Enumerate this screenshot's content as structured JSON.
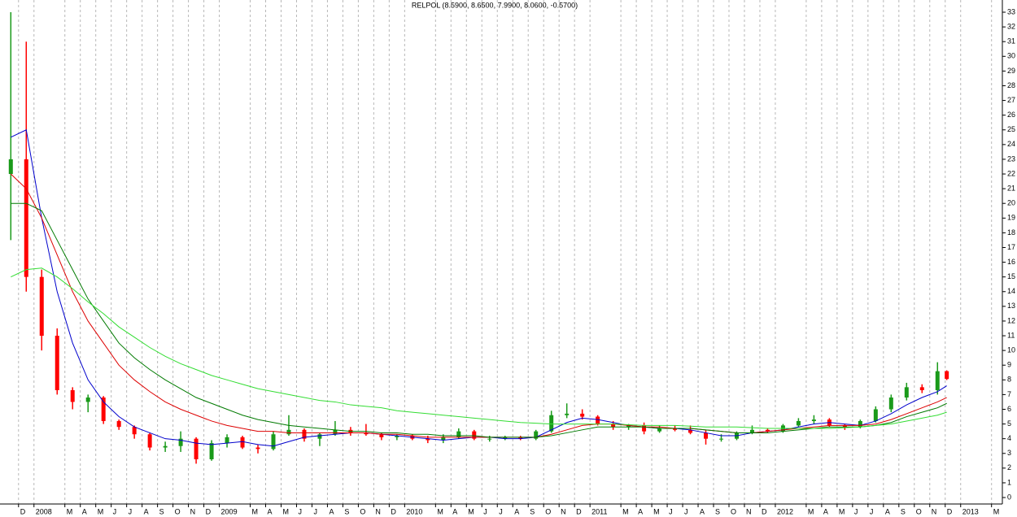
{
  "chart_data": {
    "type": "candlestick",
    "title": "RELPOL (8.5900, 8.6500, 7.9900, 8.0600, -0.5700)",
    "x": [
      0.5,
      1.5,
      2.5,
      3.5,
      4.5,
      5.5,
      6.5,
      7.5,
      8.5,
      9.5,
      10.5,
      11.5,
      12.5,
      13.5,
      14.5,
      15.5,
      16.5,
      17.5,
      18.5,
      19.5,
      20.5,
      21.5,
      22.5,
      23.5,
      24.5,
      25.5,
      26.5,
      27.5,
      28.5,
      29.5,
      30.5,
      31.5,
      32.5,
      33.5,
      34.5,
      35.5,
      36.5,
      37.5,
      38.5,
      39.5,
      40.5,
      41.5,
      42.5,
      43.5,
      44.5,
      45.5,
      46.5,
      47.5,
      48.5,
      49.5,
      50.5,
      51.5,
      52.5,
      53.5,
      54.5,
      55.5,
      56.5,
      57.5,
      58.5,
      59.5,
      60.5,
      61.1
    ],
    "candles": {
      "up_color": "#1a9a1a",
      "down_color": "#ff0000",
      "open": [
        22,
        23,
        15,
        11,
        7.3,
        6.5,
        6.8,
        5.2,
        4.8,
        4.3,
        3.4,
        3.5,
        4.0,
        2.6,
        3.7,
        4.1,
        3.4,
        3.3,
        4.3,
        4.6,
        4.0,
        4.3,
        4.6,
        4.4,
        4.3,
        4.1,
        4.2,
        4.0,
        3.9,
        4.1,
        4.5,
        4.0,
        4.0,
        4.1,
        4.0,
        4.5,
        5.6,
        5.7,
        5.5,
        5.0,
        4.8,
        4.9,
        4.5,
        4.7,
        4.6,
        4.4,
        4.0,
        4.0,
        4.4,
        4.6,
        4.5,
        4.9,
        5.2,
        5.3,
        4.9,
        4.8,
        5.2,
        6.0,
        6.8,
        7.5,
        7.3,
        8.59
      ],
      "high": [
        33,
        31,
        15.5,
        11.5,
        7.5,
        7,
        6.9,
        5.3,
        4.9,
        4.4,
        3.8,
        4.5,
        4.1,
        3.9,
        4.3,
        4.2,
        3.6,
        4.5,
        5.6,
        4.7,
        4.4,
        5.2,
        4.8,
        5.0,
        4.4,
        4.3,
        4.3,
        4.2,
        4.3,
        4.7,
        4.6,
        4.2,
        4.2,
        4.2,
        4.6,
        5.9,
        6.4,
        6.0,
        5.6,
        5.2,
        5.0,
        5.1,
        4.9,
        4.9,
        4.9,
        4.6,
        4.3,
        4.5,
        4.9,
        4.7,
        5.0,
        5.4,
        5.6,
        5.4,
        5.0,
        5.3,
        6.2,
        7.0,
        7.8,
        7.7,
        9.2,
        8.65
      ],
      "low": [
        17.5,
        14,
        10,
        7,
        6,
        5.8,
        5,
        4.6,
        4,
        3.2,
        3.1,
        3.1,
        2.3,
        2.5,
        3.4,
        3.3,
        3.0,
        3.2,
        4.2,
        3.8,
        3.5,
        4.2,
        4.2,
        4.2,
        3.9,
        3.9,
        3.9,
        3.7,
        3.7,
        4.0,
        3.9,
        3.8,
        3.9,
        3.9,
        3.9,
        4.4,
        5.4,
        5.3,
        4.9,
        4.6,
        4.6,
        4.3,
        4.4,
        4.5,
        4.3,
        3.6,
        3.8,
        3.9,
        4.3,
        4.4,
        4.4,
        4.8,
        5.0,
        4.8,
        4.6,
        4.7,
        5.1,
        5.8,
        6.6,
        7.1,
        7.0,
        7.99
      ],
      "close": [
        23,
        15,
        11,
        7.3,
        6.5,
        6.8,
        5.2,
        4.8,
        4.3,
        3.4,
        3.5,
        4.0,
        2.6,
        3.7,
        4.1,
        3.4,
        3.3,
        4.3,
        4.6,
        4.0,
        4.3,
        4.6,
        4.4,
        4.3,
        4.1,
        4.2,
        4.0,
        3.9,
        4.1,
        4.5,
        4.0,
        4.0,
        4.1,
        4.0,
        4.5,
        5.6,
        5.7,
        5.5,
        5.0,
        4.8,
        4.9,
        4.5,
        4.7,
        4.6,
        4.4,
        4.0,
        4.0,
        4.4,
        4.6,
        4.5,
        4.9,
        5.2,
        5.3,
        4.9,
        4.8,
        5.2,
        6.0,
        6.8,
        7.5,
        7.3,
        8.59,
        8.06
      ]
    },
    "lines": [
      {
        "color": "#0000cc",
        "values": [
          24.5,
          25,
          19,
          14,
          10.5,
          8,
          6.5,
          5.5,
          4.8,
          4.4,
          4.0,
          3.9,
          3.7,
          3.6,
          3.7,
          3.8,
          3.6,
          3.5,
          3.8,
          4.1,
          4.2,
          4.3,
          4.4,
          4.4,
          4.3,
          4.2,
          4.1,
          4.0,
          3.9,
          4.0,
          4.1,
          4.1,
          4.0,
          4.0,
          4.1,
          4.6,
          5.1,
          5.4,
          5.3,
          5.1,
          4.9,
          4.8,
          4.7,
          4.7,
          4.6,
          4.4,
          4.2,
          4.2,
          4.4,
          4.5,
          4.6,
          4.8,
          5.0,
          5.1,
          5.0,
          4.9,
          5.2,
          5.7,
          6.3,
          6.8,
          7.2,
          7.6
        ]
      },
      {
        "color": "#dd0000",
        "values": [
          22,
          21,
          19,
          16.5,
          14,
          12,
          10.5,
          9,
          8,
          7.2,
          6.5,
          6,
          5.6,
          5.2,
          4.9,
          4.7,
          4.5,
          4.5,
          4.4,
          4.4,
          4.4,
          4.4,
          4.4,
          4.4,
          4.3,
          4.3,
          4.2,
          4.1,
          4.1,
          4.1,
          4.1,
          4.1,
          4.1,
          4.1,
          4.1,
          4.3,
          4.6,
          4.9,
          5.0,
          5.0,
          4.9,
          4.8,
          4.8,
          4.7,
          4.7,
          4.6,
          4.5,
          4.4,
          4.4,
          4.5,
          4.6,
          4.7,
          4.8,
          4.9,
          4.9,
          4.9,
          5.0,
          5.3,
          5.7,
          6.1,
          6.5,
          6.8
        ]
      },
      {
        "color": "#007a00",
        "values": [
          20,
          20,
          19.5,
          17.5,
          15.5,
          13.5,
          12,
          10.5,
          9.5,
          8.7,
          8,
          7.4,
          6.8,
          6.4,
          6,
          5.6,
          5.3,
          5.1,
          4.9,
          4.8,
          4.7,
          4.6,
          4.5,
          4.5,
          4.4,
          4.4,
          4.3,
          4.3,
          4.2,
          4.2,
          4.2,
          4.1,
          4.1,
          4.1,
          4.1,
          4.2,
          4.4,
          4.6,
          4.8,
          4.8,
          4.8,
          4.8,
          4.7,
          4.7,
          4.7,
          4.6,
          4.5,
          4.4,
          4.4,
          4.4,
          4.5,
          4.6,
          4.7,
          4.8,
          4.8,
          4.8,
          4.9,
          5.1,
          5.5,
          5.8,
          6.1,
          6.4
        ]
      },
      {
        "color": "#33dd33",
        "values": [
          15,
          15.5,
          15.6,
          15,
          14.2,
          13.3,
          12.5,
          11.6,
          10.9,
          10.2,
          9.6,
          9.1,
          8.7,
          8.3,
          8.0,
          7.7,
          7.4,
          7.2,
          7.0,
          6.8,
          6.6,
          6.5,
          6.3,
          6.2,
          6.1,
          5.9,
          5.8,
          5.7,
          5.6,
          5.5,
          5.4,
          5.3,
          5.2,
          5.1,
          5.05,
          5.0,
          5.0,
          5.0,
          5.0,
          5.0,
          4.95,
          4.9,
          4.9,
          4.9,
          4.85,
          4.8,
          4.8,
          4.8,
          4.75,
          4.7,
          4.7,
          4.7,
          4.7,
          4.7,
          4.75,
          4.8,
          4.9,
          5.0,
          5.2,
          5.4,
          5.6,
          5.8
        ]
      }
    ],
    "xlim": [
      -0.2,
      64.7
    ],
    "ylim": [
      -0.44,
      33.83
    ],
    "xticks": [
      {
        "value": 1,
        "label": "D"
      },
      {
        "value": 2,
        "label": "2008"
      },
      {
        "value": 4,
        "label": "M"
      },
      {
        "value": 5,
        "label": "A"
      },
      {
        "value": 6,
        "label": "M"
      },
      {
        "value": 7,
        "label": "J"
      },
      {
        "value": 8,
        "label": "J"
      },
      {
        "value": 9,
        "label": "A"
      },
      {
        "value": 10,
        "label": "S"
      },
      {
        "value": 11,
        "label": "O"
      },
      {
        "value": 12,
        "label": "N"
      },
      {
        "value": 13,
        "label": "D"
      },
      {
        "value": 14,
        "label": "2009"
      },
      {
        "value": 16,
        "label": "M"
      },
      {
        "value": 17,
        "label": "A"
      },
      {
        "value": 18,
        "label": "M"
      },
      {
        "value": 19,
        "label": "J"
      },
      {
        "value": 20,
        "label": "J"
      },
      {
        "value": 21,
        "label": "A"
      },
      {
        "value": 22,
        "label": "S"
      },
      {
        "value": 23,
        "label": "O"
      },
      {
        "value": 24,
        "label": "N"
      },
      {
        "value": 25,
        "label": "D"
      },
      {
        "value": 26,
        "label": "2010"
      },
      {
        "value": 28,
        "label": "M"
      },
      {
        "value": 29,
        "label": "A"
      },
      {
        "value": 30,
        "label": "M"
      },
      {
        "value": 31,
        "label": "J"
      },
      {
        "value": 32,
        "label": "J"
      },
      {
        "value": 33,
        "label": "A"
      },
      {
        "value": 34,
        "label": "S"
      },
      {
        "value": 35,
        "label": "O"
      },
      {
        "value": 36,
        "label": "N"
      },
      {
        "value": 37,
        "label": "D"
      },
      {
        "value": 38,
        "label": "2011"
      },
      {
        "value": 40,
        "label": "M"
      },
      {
        "value": 41,
        "label": "A"
      },
      {
        "value": 42,
        "label": "M"
      },
      {
        "value": 43,
        "label": "J"
      },
      {
        "value": 44,
        "label": "J"
      },
      {
        "value": 45,
        "label": "A"
      },
      {
        "value": 46,
        "label": "S"
      },
      {
        "value": 47,
        "label": "O"
      },
      {
        "value": 48,
        "label": "N"
      },
      {
        "value": 49,
        "label": "D"
      },
      {
        "value": 50,
        "label": "2012"
      },
      {
        "value": 52,
        "label": "M"
      },
      {
        "value": 53,
        "label": "A"
      },
      {
        "value": 54,
        "label": "M"
      },
      {
        "value": 55,
        "label": "J"
      },
      {
        "value": 56,
        "label": "J"
      },
      {
        "value": 57,
        "label": "A"
      },
      {
        "value": 58,
        "label": "S"
      },
      {
        "value": 59,
        "label": "O"
      },
      {
        "value": 60,
        "label": "N"
      },
      {
        "value": 61,
        "label": "D"
      },
      {
        "value": 62,
        "label": "2013"
      },
      {
        "value": 64,
        "label": "M"
      }
    ],
    "yticks": [
      0,
      1,
      2,
      3,
      4,
      5,
      6,
      7,
      8,
      9,
      10,
      11,
      12,
      13,
      14,
      15,
      16,
      17,
      18,
      19,
      20,
      21,
      22,
      23,
      24,
      25,
      26,
      27,
      28,
      29,
      30,
      31,
      32,
      33
    ],
    "grid": true
  }
}
